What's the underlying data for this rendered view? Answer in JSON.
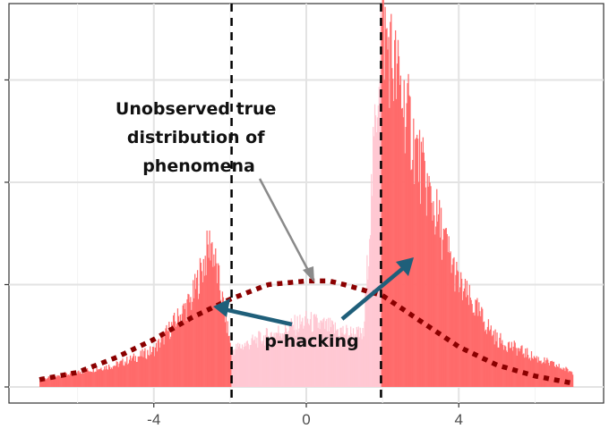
{
  "chart_data": {
    "type": "histogram",
    "title": "",
    "xlabel": "",
    "ylabel": "",
    "xlim": [
      -7.8,
      7.8
    ],
    "ylim": [
      0,
      1
    ],
    "x_ticks": [
      -4,
      0,
      4
    ],
    "x_tick_labels": [
      "-4",
      "0",
      "4"
    ],
    "y_ticks": [
      0,
      0.28,
      0.56,
      0.84
    ],
    "grid": true,
    "thresholds": [
      -1.96,
      1.96
    ],
    "series": [
      {
        "name": "",
        "kind": "histogram",
        "x": [
          -7,
          -6,
          -5,
          -4,
          -3,
          -2.5,
          -1.96,
          -1.5,
          -1,
          0,
          1,
          1.5,
          1.96,
          2.5,
          3,
          4,
          5,
          6,
          7
        ],
        "height": [
          0.02,
          0.04,
          0.06,
          0.1,
          0.24,
          0.4,
          0.1,
          0.12,
          0.14,
          0.18,
          0.15,
          0.14,
          1.0,
          0.8,
          0.6,
          0.28,
          0.13,
          0.08,
          0.04
        ]
      },
      {
        "name": "",
        "kind": "density-curve",
        "x": [
          -7,
          -6,
          -5,
          -4,
          -3,
          -2,
          -1,
          0,
          0.6,
          1,
          2,
          3,
          4,
          5,
          6,
          7
        ],
        "height": [
          0.02,
          0.04,
          0.08,
          0.13,
          0.19,
          0.24,
          0.28,
          0.29,
          0.29,
          0.28,
          0.25,
          0.18,
          0.11,
          0.06,
          0.03,
          0.01
        ]
      }
    ],
    "annotations": [
      {
        "text_lines": [
          "Unobserved true",
          "distribution of",
          "phenomena"
        ]
      },
      {
        "text": "p-hacking"
      }
    ]
  }
}
